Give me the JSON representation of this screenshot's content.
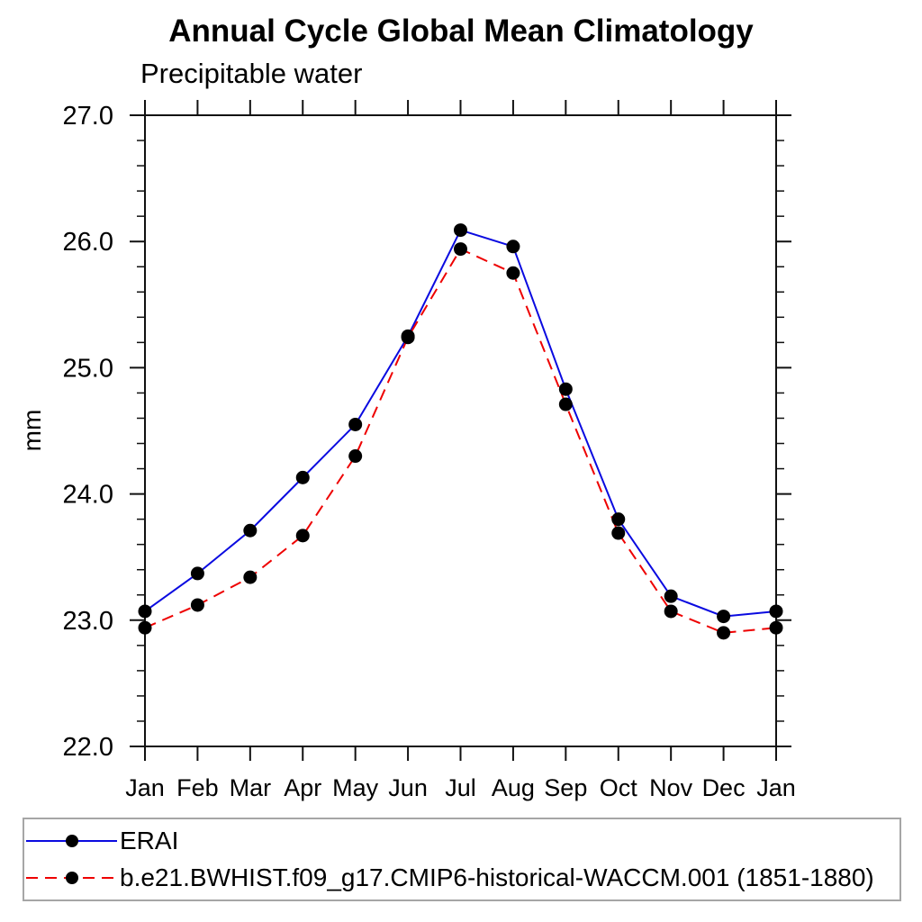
{
  "title": "Annual Cycle Global Mean Climatology",
  "subtitle": "Precipitable water",
  "ylabel": "mm",
  "chart_data": {
    "type": "line",
    "categories": [
      "Jan",
      "Feb",
      "Mar",
      "Apr",
      "May",
      "Jun",
      "Jul",
      "Aug",
      "Sep",
      "Oct",
      "Nov",
      "Dec",
      "Jan"
    ],
    "series": [
      {
        "name": "ERAI",
        "color": "#0a0ae0",
        "line_style": "solid",
        "marker": "filled-circle",
        "marker_color": "#000000",
        "values": [
          23.07,
          23.37,
          23.71,
          24.13,
          24.55,
          25.25,
          26.09,
          25.96,
          24.83,
          23.8,
          23.19,
          23.03,
          23.07
        ]
      },
      {
        "name": "b.e21.BWHIST.f09_g17.CMIP6-historical-WACCM.001 (1851-1880)",
        "color": "#ee0000",
        "line_style": "dashed",
        "marker": "filled-circle",
        "marker_color": "#000000",
        "values": [
          22.94,
          23.12,
          23.34,
          23.67,
          24.3,
          25.24,
          25.94,
          25.75,
          24.71,
          23.69,
          23.07,
          22.9,
          22.94
        ]
      }
    ],
    "xlabel": "",
    "ylabel": "mm",
    "ylim": [
      22.0,
      27.0
    ],
    "y_major_ticks": [
      "22.0",
      "23.0",
      "24.0",
      "25.0",
      "26.0",
      "27.0"
    ],
    "y_minor_step": 0.2,
    "grid": false,
    "legend_position": "bottom",
    "axis_color": "#111111"
  }
}
